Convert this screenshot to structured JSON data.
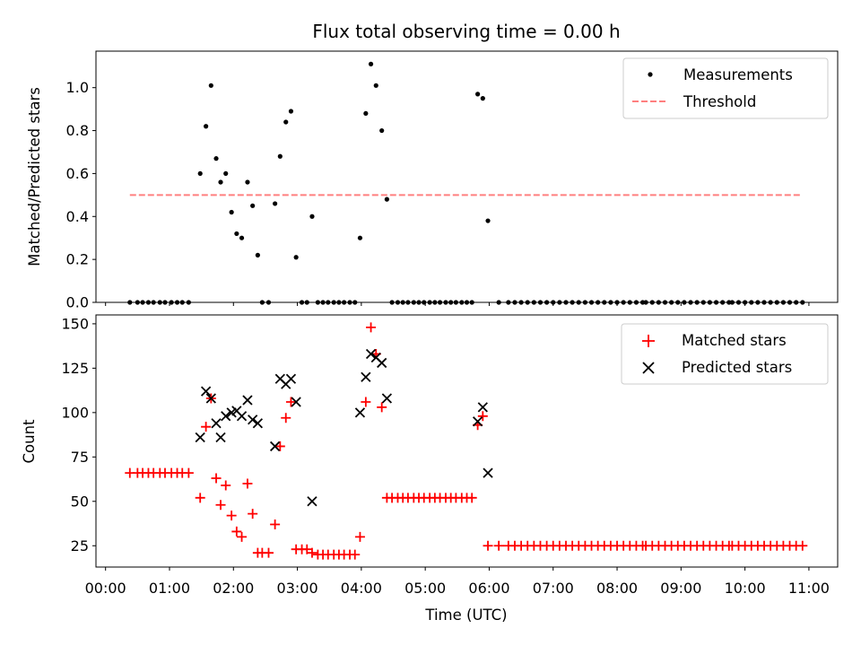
{
  "chart_data": [
    {
      "type": "scatter",
      "title": "Flux total observing time = 0.00 h",
      "xlabel": "",
      "ylabel": "Matched/Predicted stars",
      "xlim": [
        -0.15,
        11.45
      ],
      "ylim": [
        0,
        1.17
      ],
      "yticks": [
        0.0,
        0.2,
        0.4,
        0.6,
        0.8,
        1.0
      ],
      "ytick_labels": [
        "0.0",
        "0.2",
        "0.4",
        "0.6",
        "0.8",
        "1.0"
      ],
      "xticks": [
        0,
        1,
        2,
        3,
        4,
        5,
        6,
        7,
        8,
        9,
        10,
        11
      ],
      "grid": false,
      "legend_position": "top-right",
      "series": [
        {
          "name": "Measurements",
          "marker": "dot",
          "color": "#000000",
          "points": [
            [
              0.38,
              0.0
            ],
            [
              0.5,
              0.0
            ],
            [
              0.58,
              0.0
            ],
            [
              0.67,
              0.0
            ],
            [
              0.75,
              0.0
            ],
            [
              0.85,
              0.0
            ],
            [
              0.93,
              0.0
            ],
            [
              1.03,
              0.0
            ],
            [
              1.12,
              0.0
            ],
            [
              1.2,
              0.0
            ],
            [
              1.3,
              0.0
            ],
            [
              1.48,
              0.6
            ],
            [
              1.57,
              0.82
            ],
            [
              1.65,
              1.01
            ],
            [
              1.73,
              0.67
            ],
            [
              1.8,
              0.56
            ],
            [
              1.88,
              0.6
            ],
            [
              1.97,
              0.42
            ],
            [
              2.05,
              0.32
            ],
            [
              2.13,
              0.3
            ],
            [
              2.22,
              0.56
            ],
            [
              2.3,
              0.45
            ],
            [
              2.38,
              0.22
            ],
            [
              2.45,
              0.0
            ],
            [
              2.55,
              0.0
            ],
            [
              2.65,
              0.46
            ],
            [
              2.73,
              0.68
            ],
            [
              2.82,
              0.84
            ],
            [
              2.9,
              0.89
            ],
            [
              2.98,
              0.21
            ],
            [
              3.07,
              0.0
            ],
            [
              3.15,
              0.0
            ],
            [
              3.23,
              0.4
            ],
            [
              3.32,
              0.0
            ],
            [
              3.4,
              0.0
            ],
            [
              3.48,
              0.0
            ],
            [
              3.57,
              0.0
            ],
            [
              3.65,
              0.0
            ],
            [
              3.73,
              0.0
            ],
            [
              3.82,
              0.0
            ],
            [
              3.9,
              0.0
            ],
            [
              3.98,
              0.3
            ],
            [
              4.07,
              0.88
            ],
            [
              4.15,
              1.11
            ],
            [
              4.23,
              1.01
            ],
            [
              4.32,
              0.8
            ],
            [
              4.4,
              0.48
            ],
            [
              4.48,
              0.0
            ],
            [
              4.57,
              0.0
            ],
            [
              4.65,
              0.0
            ],
            [
              4.73,
              0.0
            ],
            [
              4.82,
              0.0
            ],
            [
              4.9,
              0.0
            ],
            [
              4.98,
              0.0
            ],
            [
              5.07,
              0.0
            ],
            [
              5.15,
              0.0
            ],
            [
              5.23,
              0.0
            ],
            [
              5.32,
              0.0
            ],
            [
              5.4,
              0.0
            ],
            [
              5.48,
              0.0
            ],
            [
              5.57,
              0.0
            ],
            [
              5.65,
              0.0
            ],
            [
              5.73,
              0.0
            ],
            [
              5.82,
              0.97
            ],
            [
              5.9,
              0.95
            ],
            [
              5.98,
              0.38
            ],
            [
              6.15,
              0.0
            ],
            [
              6.3,
              0.0
            ],
            [
              6.4,
              0.0
            ],
            [
              6.5,
              0.0
            ],
            [
              6.6,
              0.0
            ],
            [
              6.7,
              0.0
            ],
            [
              6.8,
              0.0
            ],
            [
              6.9,
              0.0
            ],
            [
              7.0,
              0.0
            ],
            [
              7.1,
              0.0
            ],
            [
              7.2,
              0.0
            ],
            [
              7.3,
              0.0
            ],
            [
              7.4,
              0.0
            ],
            [
              7.5,
              0.0
            ],
            [
              7.6,
              0.0
            ],
            [
              7.7,
              0.0
            ],
            [
              7.8,
              0.0
            ],
            [
              7.9,
              0.0
            ],
            [
              8.0,
              0.0
            ],
            [
              8.1,
              0.0
            ],
            [
              8.2,
              0.0
            ],
            [
              8.3,
              0.0
            ],
            [
              8.4,
              0.0
            ],
            [
              8.45,
              0.0
            ],
            [
              8.55,
              0.0
            ],
            [
              8.65,
              0.0
            ],
            [
              8.75,
              0.0
            ],
            [
              8.85,
              0.0
            ],
            [
              8.95,
              0.0
            ],
            [
              9.05,
              0.0
            ],
            [
              9.15,
              0.0
            ],
            [
              9.25,
              0.0
            ],
            [
              9.35,
              0.0
            ],
            [
              9.45,
              0.0
            ],
            [
              9.55,
              0.0
            ],
            [
              9.65,
              0.0
            ],
            [
              9.75,
              0.0
            ],
            [
              9.8,
              0.0
            ],
            [
              9.9,
              0.0
            ],
            [
              10.0,
              0.0
            ],
            [
              10.1,
              0.0
            ],
            [
              10.2,
              0.0
            ],
            [
              10.3,
              0.0
            ],
            [
              10.4,
              0.0
            ],
            [
              10.5,
              0.0
            ],
            [
              10.6,
              0.0
            ],
            [
              10.7,
              0.0
            ],
            [
              10.8,
              0.0
            ],
            [
              10.9,
              0.0
            ]
          ]
        },
        {
          "name": "Threshold",
          "type": "line",
          "style": "dashed",
          "color": "#ff7f7f",
          "x": [
            0.38,
            10.9
          ],
          "values": [
            0.5,
            0.5
          ]
        }
      ]
    },
    {
      "type": "scatter",
      "title": "",
      "xlabel": "Time (UTC)",
      "ylabel": "Count",
      "xlim": [
        -0.15,
        11.45
      ],
      "ylim": [
        13,
        155
      ],
      "yticks": [
        25,
        50,
        75,
        100,
        125,
        150
      ],
      "ytick_labels": [
        "25",
        "50",
        "75",
        "100",
        "125",
        "150"
      ],
      "xticks": [
        0,
        1,
        2,
        3,
        4,
        5,
        6,
        7,
        8,
        9,
        10,
        11
      ],
      "xtick_labels": [
        "00:00",
        "01:00",
        "02:00",
        "03:00",
        "04:00",
        "05:00",
        "06:00",
        "07:00",
        "08:00",
        "09:00",
        "10:00",
        "11:00"
      ],
      "grid": false,
      "legend_position": "top-right",
      "series": [
        {
          "name": "Matched stars",
          "marker": "plus",
          "color": "#ff0000",
          "points": [
            [
              0.38,
              66
            ],
            [
              0.5,
              66
            ],
            [
              0.58,
              66
            ],
            [
              0.67,
              66
            ],
            [
              0.75,
              66
            ],
            [
              0.85,
              66
            ],
            [
              0.93,
              66
            ],
            [
              1.03,
              66
            ],
            [
              1.12,
              66
            ],
            [
              1.2,
              66
            ],
            [
              1.3,
              66
            ],
            [
              1.48,
              52
            ],
            [
              1.57,
              92
            ],
            [
              1.65,
              108
            ],
            [
              1.73,
              63
            ],
            [
              1.8,
              48
            ],
            [
              1.88,
              59
            ],
            [
              1.97,
              42
            ],
            [
              2.05,
              33
            ],
            [
              2.13,
              30
            ],
            [
              2.22,
              60
            ],
            [
              2.3,
              43
            ],
            [
              2.38,
              21
            ],
            [
              2.45,
              21
            ],
            [
              2.55,
              21
            ],
            [
              2.65,
              37
            ],
            [
              2.73,
              81
            ],
            [
              2.82,
              97
            ],
            [
              2.9,
              106
            ],
            [
              2.98,
              23
            ],
            [
              3.07,
              23
            ],
            [
              3.15,
              23
            ],
            [
              3.23,
              21
            ],
            [
              3.32,
              20
            ],
            [
              3.4,
              20
            ],
            [
              3.48,
              20
            ],
            [
              3.57,
              20
            ],
            [
              3.65,
              20
            ],
            [
              3.73,
              20
            ],
            [
              3.82,
              20
            ],
            [
              3.9,
              20
            ],
            [
              3.98,
              30
            ],
            [
              4.07,
              106
            ],
            [
              4.15,
              148
            ],
            [
              4.23,
              133
            ],
            [
              4.32,
              103
            ],
            [
              4.4,
              52
            ],
            [
              4.48,
              52
            ],
            [
              4.57,
              52
            ],
            [
              4.65,
              52
            ],
            [
              4.73,
              52
            ],
            [
              4.82,
              52
            ],
            [
              4.9,
              52
            ],
            [
              4.98,
              52
            ],
            [
              5.07,
              52
            ],
            [
              5.15,
              52
            ],
            [
              5.23,
              52
            ],
            [
              5.32,
              52
            ],
            [
              5.4,
              52
            ],
            [
              5.48,
              52
            ],
            [
              5.57,
              52
            ],
            [
              5.65,
              52
            ],
            [
              5.73,
              52
            ],
            [
              5.82,
              93
            ],
            [
              5.9,
              98
            ],
            [
              5.98,
              25
            ],
            [
              6.15,
              25
            ],
            [
              6.3,
              25
            ],
            [
              6.4,
              25
            ],
            [
              6.5,
              25
            ],
            [
              6.6,
              25
            ],
            [
              6.7,
              25
            ],
            [
              6.8,
              25
            ],
            [
              6.9,
              25
            ],
            [
              7.0,
              25
            ],
            [
              7.1,
              25
            ],
            [
              7.2,
              25
            ],
            [
              7.3,
              25
            ],
            [
              7.4,
              25
            ],
            [
              7.5,
              25
            ],
            [
              7.6,
              25
            ],
            [
              7.7,
              25
            ],
            [
              7.8,
              25
            ],
            [
              7.9,
              25
            ],
            [
              8.0,
              25
            ],
            [
              8.1,
              25
            ],
            [
              8.2,
              25
            ],
            [
              8.3,
              25
            ],
            [
              8.4,
              25
            ],
            [
              8.45,
              25
            ],
            [
              8.55,
              25
            ],
            [
              8.65,
              25
            ],
            [
              8.75,
              25
            ],
            [
              8.85,
              25
            ],
            [
              8.95,
              25
            ],
            [
              9.05,
              25
            ],
            [
              9.15,
              25
            ],
            [
              9.25,
              25
            ],
            [
              9.35,
              25
            ],
            [
              9.45,
              25
            ],
            [
              9.55,
              25
            ],
            [
              9.65,
              25
            ],
            [
              9.75,
              25
            ],
            [
              9.8,
              25
            ],
            [
              9.9,
              25
            ],
            [
              10.0,
              25
            ],
            [
              10.1,
              25
            ],
            [
              10.2,
              25
            ],
            [
              10.3,
              25
            ],
            [
              10.4,
              25
            ],
            [
              10.5,
              25
            ],
            [
              10.6,
              25
            ],
            [
              10.7,
              25
            ],
            [
              10.8,
              25
            ],
            [
              10.9,
              25
            ]
          ]
        },
        {
          "name": "Predicted stars",
          "marker": "x",
          "color": "#000000",
          "points": [
            [
              1.48,
              86
            ],
            [
              1.57,
              112
            ],
            [
              1.65,
              108
            ],
            [
              1.73,
              94
            ],
            [
              1.8,
              86
            ],
            [
              1.88,
              98
            ],
            [
              1.97,
              100
            ],
            [
              2.05,
              101
            ],
            [
              2.13,
              98
            ],
            [
              2.22,
              107
            ],
            [
              2.3,
              96
            ],
            [
              2.38,
              94
            ],
            [
              2.65,
              81
            ],
            [
              2.73,
              119
            ],
            [
              2.82,
              116
            ],
            [
              2.9,
              119
            ],
            [
              2.98,
              106
            ],
            [
              3.23,
              50
            ],
            [
              3.98,
              100
            ],
            [
              4.07,
              120
            ],
            [
              4.15,
              133
            ],
            [
              4.23,
              131
            ],
            [
              4.32,
              128
            ],
            [
              4.4,
              108
            ],
            [
              5.82,
              95
            ],
            [
              5.9,
              103
            ],
            [
              5.98,
              66
            ]
          ]
        }
      ]
    }
  ]
}
